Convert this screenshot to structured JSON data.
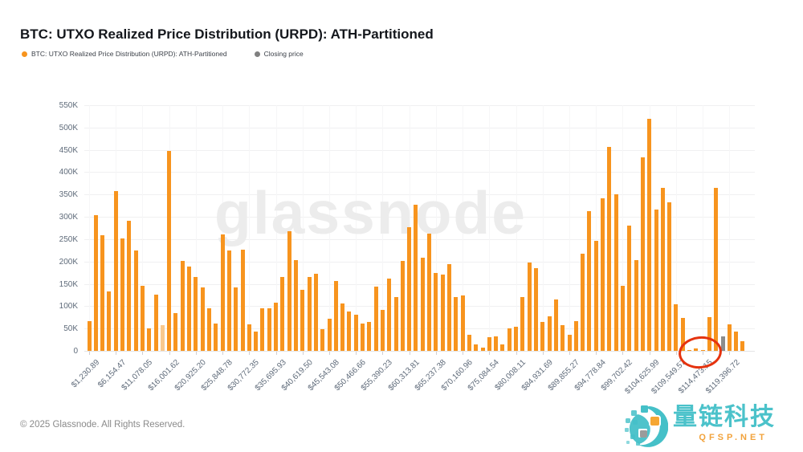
{
  "title": "BTC: UTXO Realized Price Distribution (URPD): ATH-Partitioned",
  "legend": {
    "series": {
      "label": "BTC: UTXO Realized Price Distribution (URPD): ATH-Partitioned",
      "color": "#f7941e"
    },
    "closing": {
      "label": "Closing price",
      "color": "#808080"
    }
  },
  "watermark": "glassnode",
  "footer": {
    "copyright": "© 2025 Glassnode. All Rights Reserved."
  },
  "logo": {
    "name": "量链科技",
    "site": "QFSP.NET",
    "teal": "#45c0c8",
    "orange": "#f5a733"
  },
  "colors": {
    "bar": "#f7941e",
    "bar_light": "#f9c98e",
    "bar_closing": "#8c8c8c",
    "grid_h": "#f0f0f1",
    "grid_v": "#f6f6f7",
    "axis_text": "#5f6b7a",
    "annotation_red": "#e5330f",
    "watermark_gray": "#ececec"
  },
  "chart_data": {
    "type": "bar",
    "title": "BTC: UTXO Realized Price Distribution (URPD): ATH-Partitioned",
    "xlabel": "",
    "ylabel": "",
    "ylim": [
      0,
      550000
    ],
    "grid": "on",
    "legend_position": "top-left",
    "y_tick_labels": [
      "0",
      "50K",
      "100K",
      "150K",
      "200K",
      "250K",
      "300K",
      "350K",
      "400K",
      "450K",
      "500K",
      "550K"
    ],
    "y_tick_values": [
      0,
      50000,
      100000,
      150000,
      200000,
      250000,
      300000,
      350000,
      400000,
      450000,
      500000,
      550000
    ],
    "x_tick_labels": [
      "$1,230.89",
      "$6,154.47",
      "$11,078.05",
      "$16,001.62",
      "$20,925.20",
      "$25,848.78",
      "$30,772.35",
      "$35,695.93",
      "$40,619.50",
      "$45,543.08",
      "$50,466.66",
      "$55,390.23",
      "$60,313.81",
      "$65,237.38",
      "$70,160.96",
      "$75,084.54",
      "$80,008.11",
      "$84,931.69",
      "$89,855.27",
      "$94,778.84",
      "$99,702.42",
      "$104,625.99",
      "$109,549.57",
      "$114,473.15",
      "$119,396.72"
    ],
    "x_tick_every_n_bars": 4,
    "series": [
      {
        "name": "BTC: UTXO Realized Price Distribution (URPD): ATH-Partitioned",
        "values": [
          67000,
          303000,
          258000,
          133000,
          357000,
          252000,
          291000,
          224000,
          145000,
          51000,
          126000,
          57000,
          447000,
          84000,
          202000,
          188000,
          165000,
          142000,
          96000,
          61000,
          260000,
          224000,
          142000,
          227000,
          60000,
          43000,
          95000,
          96000,
          107000,
          166000,
          268000,
          203000,
          136000,
          165000,
          173000,
          49000,
          72000,
          157000,
          106000,
          88000,
          81000,
          61000,
          65000,
          143000,
          91000,
          161000,
          120000,
          201000,
          276000,
          327000,
          208000,
          262000,
          174000,
          171000,
          195000,
          121000,
          124000,
          36000,
          14000,
          8000,
          30000,
          32000,
          14000,
          50000,
          54000,
          121000,
          197000,
          186000,
          65000,
          77000,
          115000,
          57000,
          36000,
          67000,
          218000,
          313000,
          246000,
          341000,
          456000,
          350000,
          145000,
          280000,
          204000,
          433000,
          520000,
          316000,
          364000,
          333000,
          105000,
          73000,
          2000,
          5000,
          2000,
          76000,
          365000,
          33000,
          60000,
          43000,
          21000
        ]
      }
    ],
    "light_bar_index": 11,
    "closing_price_bar": {
      "index": 95,
      "value": 33000
    },
    "annotation": {
      "shape": "red-ellipse",
      "around_x_label": "$114,473.15",
      "covers_bar_indices": [
        90,
        91,
        92
      ],
      "note": "hand-drawn red circle highlighting near-zero supply buckets around $114,473"
    }
  }
}
